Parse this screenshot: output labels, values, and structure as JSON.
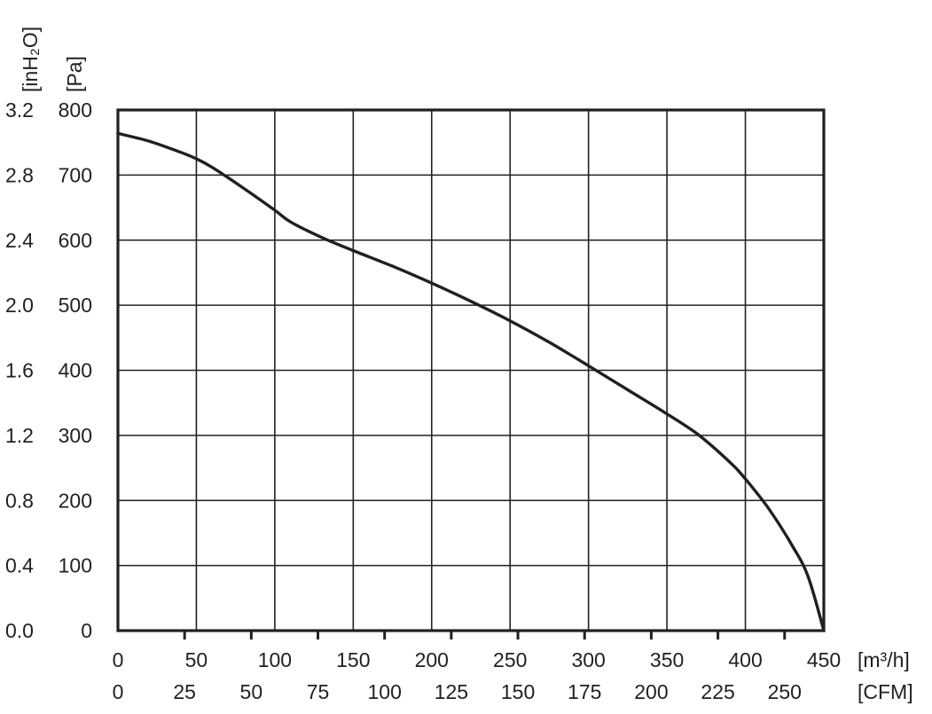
{
  "chart_data": {
    "type": "line",
    "y_axes": [
      {
        "unit_label": "[inH₂O]",
        "ticks": [
          "0.0",
          "0.4",
          "0.8",
          "1.2",
          "1.6",
          "2.0",
          "2.4",
          "2.8",
          "3.2"
        ],
        "range": [
          0,
          3.2
        ]
      },
      {
        "unit_label": "[Pa]",
        "ticks": [
          "0",
          "100",
          "200",
          "300",
          "400",
          "500",
          "600",
          "700",
          "800"
        ],
        "range": [
          0,
          800
        ]
      }
    ],
    "x_axes": [
      {
        "unit_label": "[m³/h]",
        "ticks": [
          "0",
          "50",
          "100",
          "150",
          "200",
          "250",
          "300",
          "350",
          "400",
          "450"
        ],
        "range": [
          0,
          450
        ]
      },
      {
        "unit_label": "[CFM]",
        "ticks": [
          "0",
          "25",
          "50",
          "75",
          "100",
          "125",
          "150",
          "175",
          "200",
          "225",
          "250"
        ],
        "tick_values": [
          0,
          25,
          50,
          75,
          100,
          125,
          150,
          175,
          200,
          225,
          250
        ]
      }
    ],
    "grid": true,
    "series": [
      {
        "x": [
          0,
          20,
          40,
          50,
          60,
          80,
          100,
          110,
          130,
          150,
          175,
          200,
          225,
          250,
          275,
          300,
          325,
          350,
          370,
          390,
          400,
          415,
          430,
          440,
          450
        ],
        "y": [
          764,
          752,
          735,
          725,
          712,
          680,
          646,
          628,
          604,
          584,
          560,
          534,
          506,
          476,
          443,
          407,
          370,
          333,
          301,
          259,
          233,
          187,
          130,
          83,
          0
        ]
      }
    ]
  }
}
